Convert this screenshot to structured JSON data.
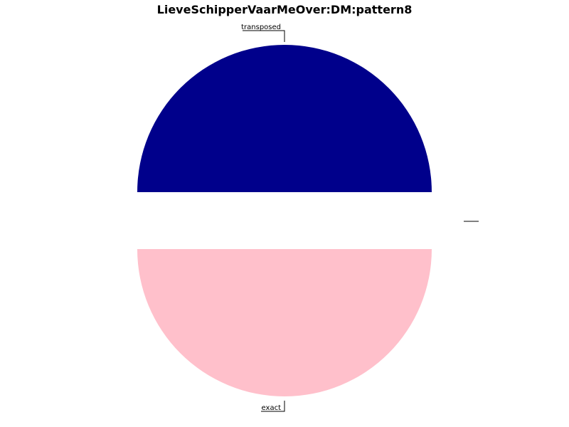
{
  "chart_data": {
    "type": "pie",
    "title": "LieveSchipperVaarMeOver:DM:pattern8",
    "slices": [
      {
        "label": "transposed",
        "value": 50,
        "color": "#00008b",
        "exploded": false
      },
      {
        "label": "",
        "value": 0,
        "color": "#000000",
        "exploded": true
      },
      {
        "label": "exact",
        "value": 50,
        "color": "#ffc0cb",
        "exploded": false
      }
    ],
    "legend": "none"
  }
}
